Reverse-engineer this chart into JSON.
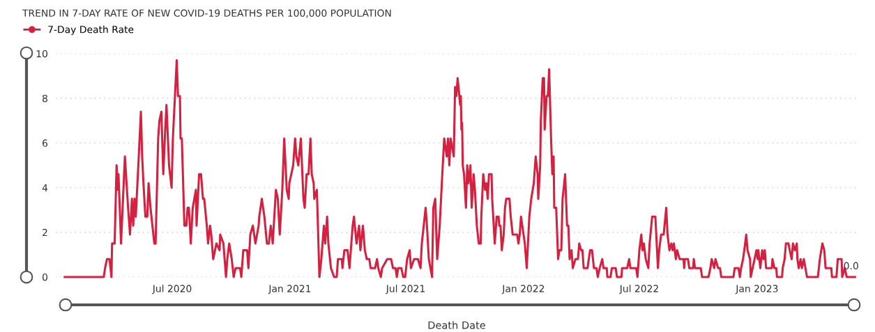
{
  "chart_data": {
    "type": "line",
    "title": "TREND IN 7-DAY RATE OF NEW COVID-19 DEATHS PER 100,000 POPULATION",
    "xlabel": "Death Date",
    "x": [
      "2020-01-15",
      "2020-03-16",
      "2020-03-18",
      "2020-03-21",
      "2020-03-25",
      "2020-03-28",
      "2020-03-29",
      "2020-04-02",
      "2020-04-05",
      "2020-04-07",
      "2020-04-08",
      "2020-04-12",
      "2020-04-18",
      "2020-04-23",
      "2020-04-26",
      "2020-04-29",
      "2020-05-01",
      "2020-05-03",
      "2020-05-05",
      "2020-05-09",
      "2020-05-13",
      "2020-05-15",
      "2020-05-17",
      "2020-05-20",
      "2020-05-23",
      "2020-05-25",
      "2020-05-28",
      "2020-06-03",
      "2020-06-05",
      "2020-06-06",
      "2020-06-09",
      "2020-06-11",
      "2020-06-14",
      "2020-06-17",
      "2020-06-20",
      "2020-06-22",
      "2020-06-26",
      "2020-06-30",
      "2020-07-02",
      "2020-07-08",
      "2020-07-10",
      "2020-07-13",
      "2020-07-14",
      "2020-07-16",
      "2020-07-20",
      "2020-07-23",
      "2020-07-25",
      "2020-07-27",
      "2020-07-30",
      "2020-08-02",
      "2020-08-07",
      "2020-08-08",
      "2020-08-12",
      "2020-08-15",
      "2020-08-18",
      "2020-08-20",
      "2020-08-24",
      "2020-08-26",
      "2020-08-29",
      "2020-08-31",
      "2020-09-03",
      "2020-09-08",
      "2020-09-13",
      "2020-09-14",
      "2020-09-19",
      "2020-09-23",
      "2020-09-25",
      "2020-09-28",
      "2020-10-02",
      "2020-10-05",
      "2020-10-08",
      "2020-10-15",
      "2020-10-17",
      "2020-10-20",
      "2020-10-26",
      "2020-10-28",
      "2020-10-31",
      "2020-11-04",
      "2020-11-08",
      "2020-11-13",
      "2020-11-14",
      "2020-11-18",
      "2020-11-22",
      "2020-11-26",
      "2020-11-29",
      "2020-12-02",
      "2020-12-05",
      "2020-12-10",
      "2020-12-13",
      "2020-12-16",
      "2020-12-20",
      "2020-12-23",
      "2020-12-27",
      "2020-12-30",
      "2020-12-31",
      "2021-01-03",
      "2021-01-06",
      "2021-01-09",
      "2021-01-11",
      "2021-01-14",
      "2021-01-18",
      "2021-01-22",
      "2021-01-24",
      "2021-01-27",
      "2021-01-30",
      "2021-02-02",
      "2021-02-04",
      "2021-02-07",
      "2021-02-08",
      "2021-02-12",
      "2021-02-16",
      "2021-02-19",
      "2021-02-23",
      "2021-02-25",
      "2021-02-28",
      "2021-03-02",
      "2021-03-06",
      "2021-03-11",
      "2021-03-15",
      "2021-03-17",
      "2021-03-23",
      "2021-03-24",
      "2021-03-27",
      "2021-04-01",
      "2021-04-04",
      "2021-04-09",
      "2021-04-11",
      "2021-04-15",
      "2021-04-19",
      "2021-04-21",
      "2021-04-25",
      "2021-04-28",
      "2021-05-01",
      "2021-05-05",
      "2021-05-07",
      "2021-05-14",
      "2021-05-17",
      "2021-05-19",
      "2021-05-23",
      "2021-05-25",
      "2021-06-02",
      "2021-06-08",
      "2021-06-11",
      "2021-06-15",
      "2021-06-17",
      "2021-06-19",
      "2021-06-24",
      "2021-06-27",
      "2021-06-30",
      "2021-07-03",
      "2021-07-07",
      "2021-07-09",
      "2021-07-14",
      "2021-07-20",
      "2021-07-24",
      "2021-07-26",
      "2021-08-01",
      "2021-08-03",
      "2021-08-06",
      "2021-08-11",
      "2021-08-13",
      "2021-08-16",
      "2021-08-19",
      "2021-08-23",
      "2021-08-27",
      "2021-08-30",
      "2021-09-03",
      "2021-09-05",
      "2021-09-07",
      "2021-09-09",
      "2021-09-14",
      "2021-09-16",
      "2021-09-18",
      "2021-09-20",
      "2021-09-24",
      "2021-09-25",
      "2021-09-26",
      "2021-09-27",
      "2021-09-28",
      "2021-09-30",
      "2021-10-03",
      "2021-10-05",
      "2021-10-07",
      "2021-10-10",
      "2021-10-12",
      "2021-10-15",
      "2021-10-17",
      "2021-10-20",
      "2021-10-23",
      "2021-10-26",
      "2021-10-27",
      "2021-10-30",
      "2021-11-02",
      "2021-11-04",
      "2021-11-06",
      "2021-11-08",
      "2021-11-12",
      "2021-11-13",
      "2021-11-17",
      "2021-11-20",
      "2021-11-23",
      "2021-11-24",
      "2021-11-26",
      "2021-11-28",
      "2021-12-01",
      "2021-12-03",
      "2021-12-05",
      "2021-12-10",
      "2021-12-12",
      "2021-12-15",
      "2021-12-22",
      "2021-12-24",
      "2021-12-26",
      "2021-12-28",
      "2022-01-01",
      "2022-01-03",
      "2022-01-06",
      "2022-01-10",
      "2022-01-13",
      "2022-01-17",
      "2022-01-20",
      "2022-01-23",
      "2022-01-24",
      "2022-01-27",
      "2022-01-28",
      "2022-01-31",
      "2022-02-02",
      "2022-02-03",
      "2022-02-06",
      "2022-02-08",
      "2022-02-10",
      "2022-02-13",
      "2022-02-15",
      "2022-02-17",
      "2022-02-18",
      "2022-02-21",
      "2022-02-24",
      "2022-02-26",
      "2022-03-01",
      "2022-03-03",
      "2022-03-07",
      "2022-03-10",
      "2022-03-12",
      "2022-03-14",
      "2022-03-17",
      "2022-03-19",
      "2022-03-23",
      "2022-03-27",
      "2022-03-29",
      "2022-04-01",
      "2022-04-03",
      "2022-04-05",
      "2022-04-11",
      "2022-04-13",
      "2022-04-15",
      "2022-04-18",
      "2022-04-21",
      "2022-04-25",
      "2022-04-27",
      "2022-04-30",
      "2022-05-04",
      "2022-05-06",
      "2022-05-11",
      "2022-05-12",
      "2022-05-17",
      "2022-05-19",
      "2022-05-25",
      "2022-05-27",
      "2022-06-03",
      "2022-06-04",
      "2022-06-12",
      "2022-06-15",
      "2022-06-17",
      "2022-06-26",
      "2022-06-28",
      "2022-06-30",
      "2022-07-01",
      "2022-07-04",
      "2022-07-06",
      "2022-07-08",
      "2022-07-11",
      "2022-07-15",
      "2022-07-17",
      "2022-07-21",
      "2022-07-26",
      "2022-07-30",
      "2022-08-01",
      "2022-08-04",
      "2022-08-08",
      "2022-08-12",
      "2022-08-14",
      "2022-08-17",
      "2022-08-20",
      "2022-08-22",
      "2022-08-24",
      "2022-08-27",
      "2022-08-29",
      "2022-09-02",
      "2022-09-08",
      "2022-09-09",
      "2022-09-10",
      "2022-09-15",
      "2022-09-17",
      "2022-09-23",
      "2022-09-24",
      "2022-09-26",
      "2022-10-05",
      "2022-10-07",
      "2022-10-17",
      "2022-10-20",
      "2022-10-22",
      "2022-10-26",
      "2022-10-28",
      "2022-11-01",
      "2022-11-04",
      "2022-11-06",
      "2022-11-25",
      "2022-11-27",
      "2022-12-03",
      "2022-12-05",
      "2022-12-07",
      "2022-12-10",
      "2022-12-12",
      "2022-12-15",
      "2022-12-17",
      "2022-12-21",
      "2022-12-22",
      "2022-12-25",
      "2022-12-28",
      "2022-12-31",
      "2023-01-02",
      "2023-01-03",
      "2023-01-06",
      "2023-01-09",
      "2023-01-11",
      "2023-01-13",
      "2023-01-15",
      "2023-01-24",
      "2023-01-25",
      "2023-01-28",
      "2023-01-31",
      "2023-02-01",
      "2023-02-09",
      "2023-02-10",
      "2023-02-13",
      "2023-02-15",
      "2023-02-19",
      "2023-02-21",
      "2023-02-24",
      "2023-02-26",
      "2023-03-01",
      "2023-03-04",
      "2023-03-05",
      "2023-03-07",
      "2023-03-10",
      "2023-03-12",
      "2023-03-15",
      "2023-03-20",
      "2023-04-06",
      "2023-04-09",
      "2023-04-13",
      "2023-04-16",
      "2023-04-18",
      "2023-04-27",
      "2023-04-28",
      "2023-05-05",
      "2023-05-07",
      "2023-05-13",
      "2023-05-14",
      "2023-05-18",
      "2023-05-21",
      "2023-06-03"
    ],
    "series": [
      {
        "name": "7-Day Death Rate",
        "color": "#d62040",
        "values": [
          0,
          0,
          0.4,
          0.8,
          0.8,
          0,
          1.5,
          1.5,
          5,
          3.9,
          4.6,
          1.5,
          5.4,
          3.1,
          1.9,
          3.5,
          2.3,
          3.5,
          2.7,
          5,
          7.4,
          5.4,
          4.2,
          2.7,
          2.7,
          4.2,
          3.1,
          1.5,
          1.5,
          2.7,
          6.2,
          7,
          7.4,
          4.6,
          6.6,
          7.7,
          5,
          4,
          6.2,
          9.7,
          8.1,
          8.1,
          6.2,
          6.2,
          2.3,
          2.3,
          3.1,
          3.1,
          1.5,
          3.1,
          3.9,
          2.3,
          4.6,
          4.6,
          3.5,
          3.5,
          2.3,
          1.5,
          2.3,
          1.9,
          0.8,
          1.5,
          1.2,
          1.9,
          1.5,
          0,
          0.8,
          1.5,
          0.8,
          0,
          0.4,
          0.4,
          0,
          1.2,
          1.2,
          0.4,
          1.9,
          2.3,
          1.5,
          2.3,
          2.7,
          3.5,
          2.7,
          1.5,
          1.5,
          2.3,
          1.5,
          3.9,
          3.5,
          1.9,
          3.9,
          6.2,
          3.9,
          3.5,
          4.2,
          4.6,
          5,
          6.2,
          5.4,
          5,
          6.2,
          3.5,
          3.1,
          4.6,
          4.6,
          6.2,
          4.6,
          4.2,
          3.5,
          3.9,
          0,
          0.8,
          2.3,
          1.5,
          2.7,
          1.5,
          0.4,
          0,
          0,
          0.8,
          0.8,
          0.4,
          1.2,
          1.2,
          0.4,
          2.3,
          2.7,
          1.5,
          2.3,
          1.2,
          2.3,
          1.2,
          0.8,
          0.8,
          0.4,
          0.4,
          0.8,
          0.4,
          0,
          0.4,
          0.8,
          0.8,
          0.4,
          0.4,
          0,
          0.4,
          0.4,
          0,
          0,
          0.8,
          1.2,
          0.4,
          0.8,
          0.8,
          0.4,
          1.5,
          3.1,
          2.3,
          0.8,
          0,
          3.1,
          3.5,
          0.8,
          2.3,
          4.6,
          6.2,
          5.4,
          6.2,
          5,
          6.2,
          5.4,
          8.5,
          8.1,
          8.9,
          7.7,
          8.1,
          6.6,
          6.9,
          5,
          4.6,
          3.1,
          5,
          4.2,
          5,
          3.1,
          4.6,
          3.9,
          2.3,
          1.5,
          1.5,
          2.7,
          4.6,
          3.9,
          4.2,
          3.5,
          4.6,
          4.6,
          3.5,
          1.5,
          2.7,
          2.7,
          2.3,
          2.3,
          1.2,
          1.9,
          3.1,
          3.5,
          3.5,
          2.7,
          1.9,
          1.9,
          1.5,
          1.9,
          2.7,
          1.9,
          1.5,
          0.4,
          2.7,
          3.5,
          4.2,
          5.4,
          4.6,
          3.5,
          5,
          7,
          8.9,
          8.9,
          6.6,
          8.1,
          8.1,
          9.3,
          6.2,
          4.6,
          5.4,
          3.1,
          3.1,
          0.8,
          1.2,
          1.2,
          3.5,
          4.6,
          2.3,
          2.3,
          0.8,
          1.2,
          0.4,
          0.8,
          0.8,
          1.5,
          1.2,
          1.2,
          0.4,
          0.4,
          0.8,
          1.2,
          1.2,
          0.4,
          0.4,
          0,
          0.4,
          0.8,
          0.4,
          0.4,
          0,
          0,
          0.4,
          0.4,
          0,
          0,
          0.4,
          0.4,
          0.8,
          0.4,
          0.4,
          0,
          0.8,
          1.2,
          1.9,
          1.2,
          1.5,
          0.8,
          0.4,
          1.5,
          2.7,
          2.7,
          0.4,
          1.2,
          1.9,
          1.9,
          3.1,
          1.9,
          1.2,
          1.5,
          1.2,
          1.5,
          0.8,
          1.2,
          0.8,
          0.8,
          0.4,
          0.8,
          0.8,
          0.4,
          0.4,
          0.8,
          0.4,
          0.4,
          0,
          0,
          0.4,
          0.8,
          0.4,
          0.8,
          0.4,
          0.4,
          0,
          0,
          0.4,
          0.4,
          0,
          0.4,
          0.8,
          1.2,
          1.9,
          1.2,
          0.8,
          0,
          0.4,
          0.8,
          1.2,
          0.8,
          1.2,
          0.4,
          1.2,
          0.8,
          1.2,
          0.4,
          0.4,
          0.8,
          0.4,
          0.4,
          0,
          0,
          0.4,
          0.8,
          1.5,
          1.5,
          1.2,
          0.8,
          1.5,
          1.2,
          1.5,
          0.8,
          0.4,
          0.8,
          0.4,
          0.8,
          0,
          0,
          0.8,
          1.5,
          1.2,
          0.4,
          0.4,
          0,
          0,
          0.8,
          0.8,
          0,
          0.4,
          0,
          0
        ]
      }
    ],
    "xlim": [
      "2020-01-01",
      "2023-06-07"
    ],
    "xticks": [
      {
        "value": "2020-07-01",
        "label": "Jul 2020"
      },
      {
        "value": "2021-01-01",
        "label": "Jan 2021"
      },
      {
        "value": "2021-07-01",
        "label": "Jul 2021"
      },
      {
        "value": "2022-01-01",
        "label": "Jan 2022"
      },
      {
        "value": "2022-07-01",
        "label": "Jul 2022"
      },
      {
        "value": "2023-01-01",
        "label": "Jan 2023"
      }
    ],
    "ylim": [
      0,
      10
    ],
    "yticks": [
      0,
      2,
      4,
      6,
      8,
      10
    ],
    "grid": "y",
    "legend": "top left",
    "line_style": "solid",
    "annotations": [
      {
        "text": "0.0",
        "x": "2023-06-03",
        "y": 0
      }
    ]
  }
}
